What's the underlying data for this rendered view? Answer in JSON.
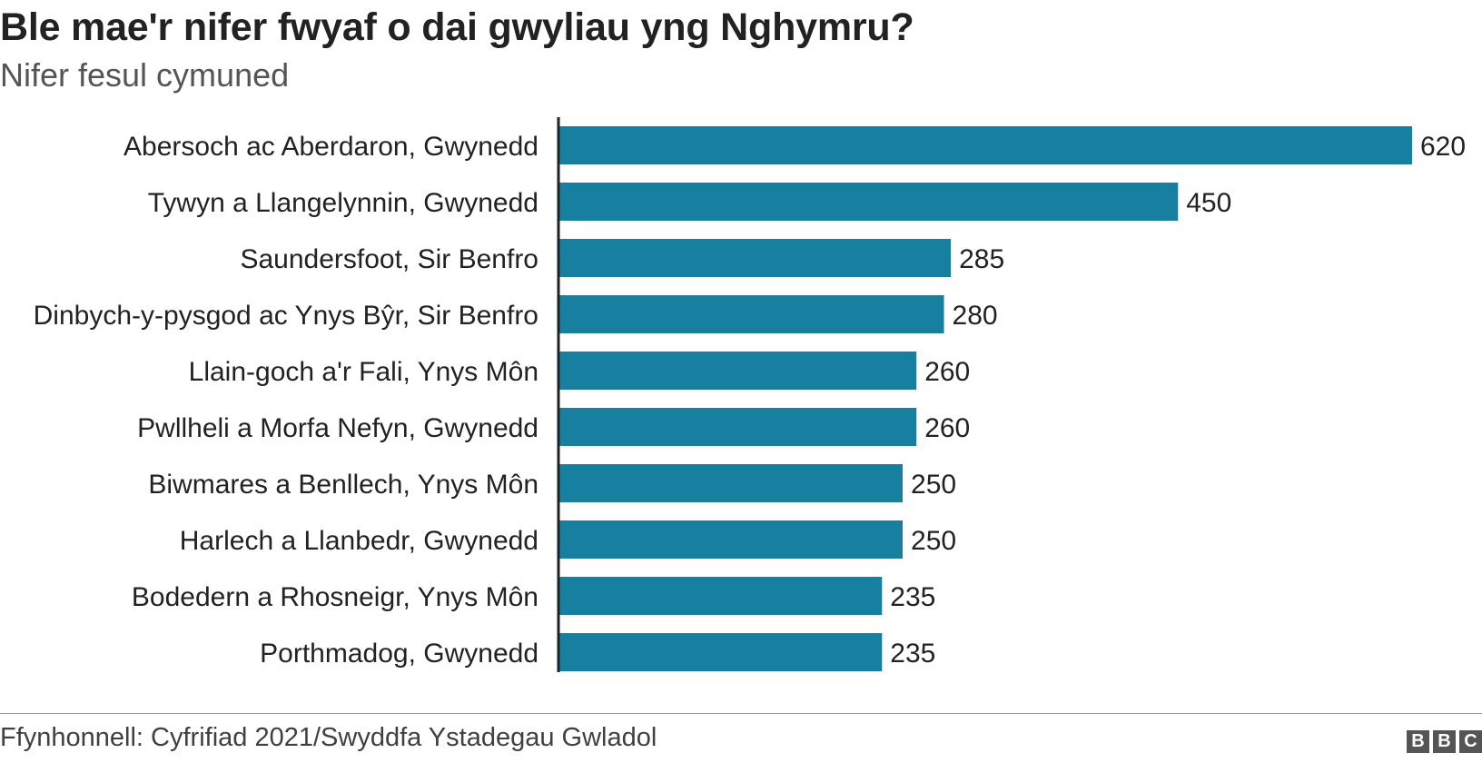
{
  "header": {
    "title": "Ble mae'r nifer fwyaf o dai gwyliau yng Nghymru?",
    "subtitle": "Nifer fesul cymuned"
  },
  "footer": {
    "source": "Ffynhonnell: Cyfrifiad 2021/Swyddfa Ystadegau Gwladol",
    "logo_letters": [
      "B",
      "B",
      "C"
    ]
  },
  "colors": {
    "bar": "#1780a1",
    "axis": "#222222",
    "text": "#222222"
  },
  "chart_data": {
    "type": "bar",
    "orientation": "horizontal",
    "title": "Ble mae'r nifer fwyaf o dai gwyliau yng Nghymru?",
    "subtitle": "Nifer fesul cymuned",
    "categories": [
      "Abersoch ac Aberdaron, Gwynedd",
      "Tywyn a Llangelynnin, Gwynedd",
      "Saundersfoot, Sir Benfro",
      "Dinbych-y-pysgod ac Ynys Bŷr, Sir Benfro",
      "Llain-goch a'r Fali, Ynys Môn",
      "Pwllheli a Morfa Nefyn, Gwynedd",
      "Biwmares a Benllech, Ynys Môn",
      "Harlech a Llanbedr, Gwynedd",
      "Bodedern a Rhosneigr, Ynys Môn",
      "Porthmadog, Gwynedd"
    ],
    "values": [
      620,
      450,
      285,
      280,
      260,
      260,
      250,
      250,
      235,
      235
    ],
    "data_labels": [
      "620",
      "450",
      "285",
      "280",
      "260",
      "260",
      "250",
      "250",
      "235",
      "235"
    ],
    "xlim": [
      0,
      620
    ],
    "grid": false,
    "legend": "none"
  }
}
